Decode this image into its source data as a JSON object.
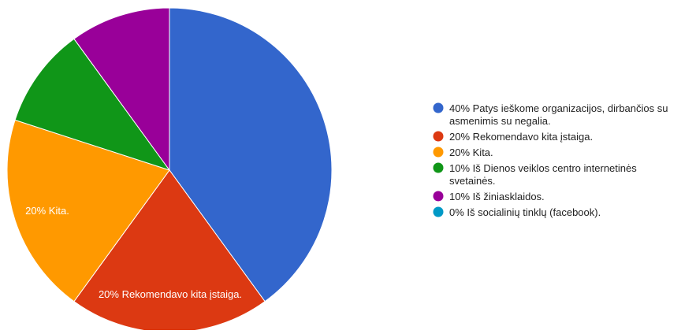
{
  "chart_data": {
    "type": "pie",
    "slices": [
      {
        "label": "Patys ieškome organizacijos, dirbančios su asmenimis su negalia.",
        "value": 40,
        "percent_text": "40%",
        "color": "#3366cc",
        "slice_label": ""
      },
      {
        "label": "Rekomendavo kita įstaiga.",
        "value": 20,
        "percent_text": "20%",
        "color": "#dc3912",
        "slice_label": "20% Rekomendavo kita įstaiga."
      },
      {
        "label": "Kita.",
        "value": 20,
        "percent_text": "20%",
        "color": "#ff9900",
        "slice_label": "20% Kita."
      },
      {
        "label": "Iš Dienos veiklos centro internetinės svetainės.",
        "value": 10,
        "percent_text": "10%",
        "color": "#109618",
        "slice_label": ""
      },
      {
        "label": "Iš žiniasklaidos.",
        "value": 10,
        "percent_text": "10%",
        "color": "#990099",
        "slice_label": ""
      },
      {
        "label": "Iš socialinių tinklų (facebook).",
        "value": 0,
        "percent_text": "0%",
        "color": "#0099c6",
        "slice_label": ""
      }
    ],
    "legend_position": "right",
    "legend_lines": [
      [
        "40% Patys ieškome organizacijos, dirbančios su",
        "asmenimis su negalia."
      ],
      [
        "20% Rekomendavo kita įstaiga."
      ],
      [
        "20% Kita."
      ],
      [
        "10% Iš Dienos veiklos centro internetinės",
        "svetainės."
      ],
      [
        "10% Iš žiniasklaidos."
      ],
      [
        "0% Iš socialinių tinklų (facebook)."
      ]
    ]
  }
}
